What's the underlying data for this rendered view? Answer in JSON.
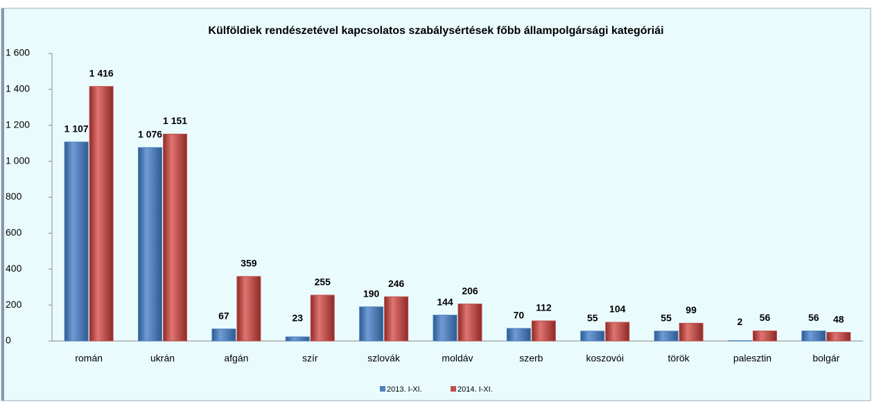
{
  "chart_data": {
    "type": "bar",
    "title": "Külföldiek rendészetével kapcsolatos szabálysértések főbb állampolgársági kategóriái",
    "categories": [
      "román",
      "ukrán",
      "afgán",
      "szír",
      "szlovák",
      "moldáv",
      "szerb",
      "koszovói",
      "török",
      "palesztin",
      "bolgár"
    ],
    "series": [
      {
        "name": "2013. I-XI.",
        "color": "#4f81bd",
        "values": [
          1107,
          1076,
          67,
          23,
          190,
          144,
          70,
          55,
          55,
          2,
          56
        ],
        "value_labels": [
          "1 107",
          "1 076",
          "67",
          "23",
          "190",
          "144",
          "70",
          "55",
          "55",
          "2",
          "56"
        ]
      },
      {
        "name": "2014. I-XI.",
        "color": "#c0504d",
        "values": [
          1416,
          1151,
          359,
          255,
          246,
          206,
          112,
          104,
          99,
          56,
          48
        ],
        "value_labels": [
          "1 416",
          "1 151",
          "359",
          "255",
          "246",
          "206",
          "112",
          "104",
          "99",
          "56",
          "48"
        ]
      }
    ],
    "ylim": [
      0,
      1600
    ],
    "yticks": [
      0,
      200,
      400,
      600,
      800,
      {
        "value": 1000,
        "label": "1 000"
      },
      {
        "value": 1200,
        "label": "1 200"
      },
      {
        "value": 1400,
        "label": "1 400"
      },
      {
        "value": 1600,
        "label": "1 600"
      }
    ],
    "grid": false,
    "legend": "bottom"
  }
}
